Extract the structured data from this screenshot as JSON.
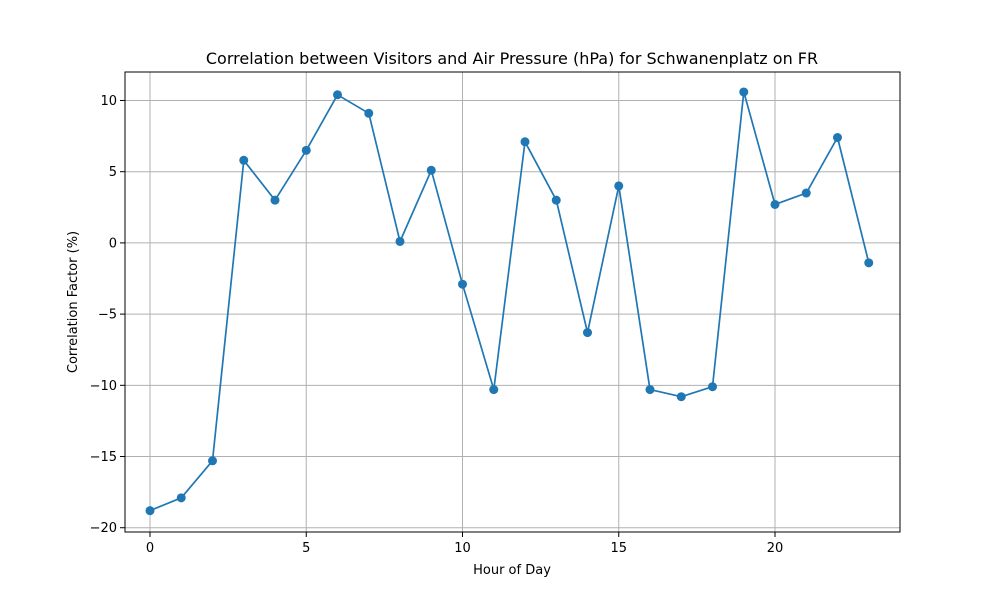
{
  "chart_data": {
    "type": "line",
    "title": "Correlation between Visitors and Air Pressure (hPa) for Schwanenplatz on FR",
    "xlabel": "Hour of Day",
    "ylabel": "Correlation Factor (%)",
    "xlim": [
      -0.8,
      24
    ],
    "ylim": [
      -20.3,
      12
    ],
    "xticks": [
      0,
      5,
      10,
      15,
      20
    ],
    "yticks": [
      -20,
      -15,
      -10,
      -5,
      0,
      5,
      10
    ],
    "grid": true,
    "color": "#1f77b4",
    "series": [
      {
        "x": [
          0,
          1,
          2,
          3,
          4,
          5,
          6,
          7,
          8,
          9,
          10,
          11,
          12,
          13,
          14,
          15,
          16,
          17,
          18,
          19,
          20,
          21,
          22,
          23
        ],
        "values": [
          -18.8,
          -17.9,
          -15.3,
          5.8,
          3.0,
          6.5,
          10.4,
          9.1,
          0.1,
          5.1,
          -2.9,
          -10.3,
          7.1,
          3.0,
          -6.3,
          4.0,
          -10.3,
          -10.8,
          -10.1,
          10.6,
          2.7,
          3.5,
          7.4,
          -1.4
        ]
      }
    ]
  }
}
